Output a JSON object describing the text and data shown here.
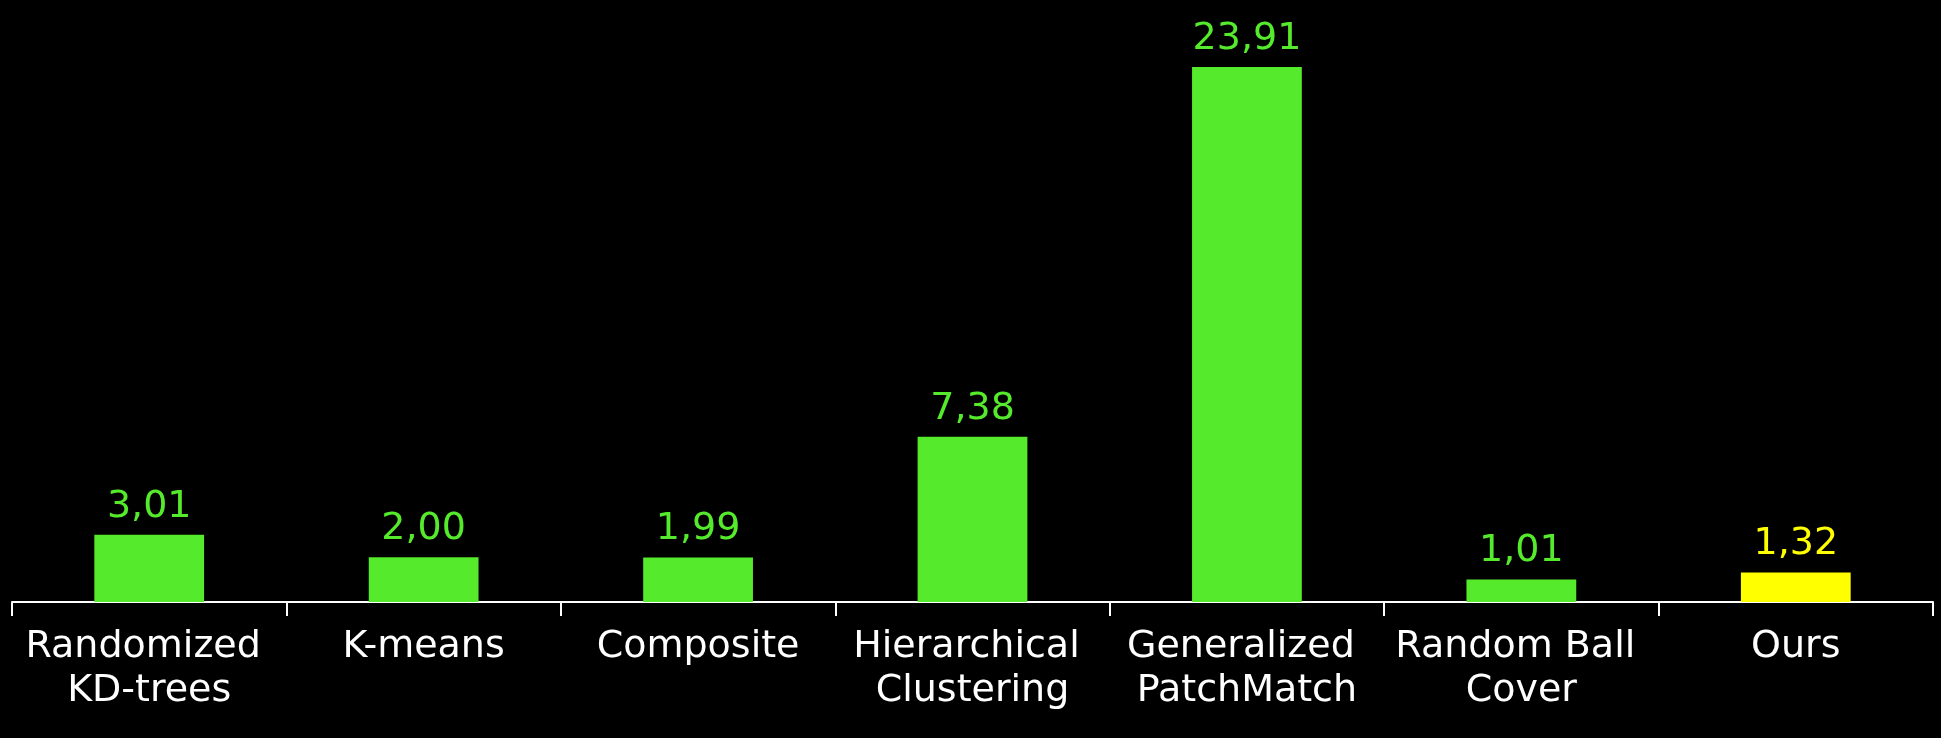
{
  "chart_data": {
    "type": "bar",
    "categories": [
      "Randomized KD-trees",
      "K-means",
      "Composite",
      "Hierarchical Clustering",
      "Generalized PatchMatch",
      "Random Ball Cover",
      "Ours"
    ],
    "values": [
      3.01,
      2.0,
      1.99,
      7.38,
      23.91,
      1.01,
      1.32
    ],
    "value_labels": [
      "3,01",
      "2,00",
      "1,99",
      "7,38",
      "23,91",
      "1,01",
      "1,32"
    ],
    "colors": [
      "#55ea2b",
      "#55ea2b",
      "#55ea2b",
      "#55ea2b",
      "#55ea2b",
      "#55ea2b",
      "#ffff00"
    ]
  }
}
